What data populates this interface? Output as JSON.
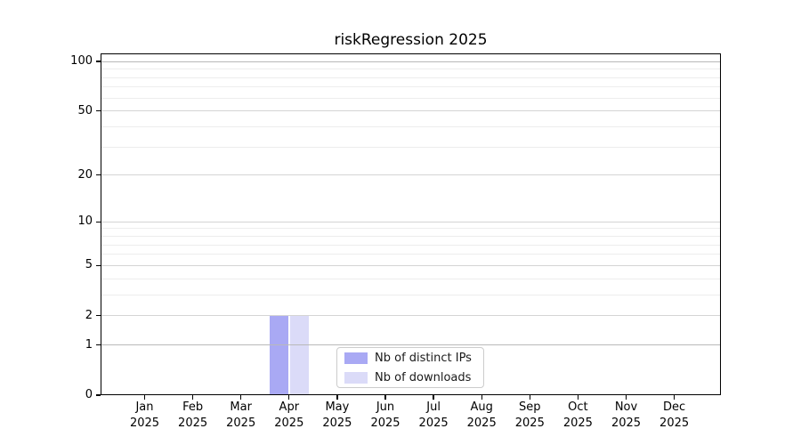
{
  "chart_data": {
    "type": "bar",
    "title": "riskRegression 2025",
    "x": {
      "months": [
        "Jan",
        "Feb",
        "Mar",
        "Apr",
        "May",
        "Jun",
        "Jul",
        "Aug",
        "Sep",
        "Oct",
        "Nov",
        "Dec"
      ],
      "year": "2025"
    },
    "categories": [
      "Jan 2025",
      "Feb 2025",
      "Mar 2025",
      "Apr 2025",
      "May 2025",
      "Jun 2025",
      "Jul 2025",
      "Aug 2025",
      "Sep 2025",
      "Oct 2025",
      "Nov 2025",
      "Dec 2025"
    ],
    "series": [
      {
        "name": "Nb of distinct IPs",
        "color": "#a9a9f4",
        "values": [
          0,
          0,
          0,
          2,
          0,
          0,
          0,
          0,
          0,
          0,
          0,
          0
        ]
      },
      {
        "name": "Nb of downloads",
        "color": "#dbdbf8",
        "values": [
          0,
          0,
          0,
          2,
          0,
          0,
          0,
          0,
          0,
          0,
          0,
          0
        ]
      }
    ],
    "y_axis": {
      "scale": "log1p",
      "major_ticks": [
        0,
        1,
        2,
        5,
        10,
        20,
        50,
        100
      ],
      "minor_ticks": [
        3,
        4,
        6,
        7,
        8,
        9,
        30,
        40,
        60,
        70,
        80,
        90
      ],
      "limit": [
        0,
        112
      ]
    },
    "grid": true,
    "legend_position": "lower center"
  },
  "legend": {
    "items": [
      {
        "label": "Nb of distinct IPs",
        "color": "#a9a9f4"
      },
      {
        "label": "Nb of downloads",
        "color": "#dbdbf8"
      }
    ]
  },
  "colors": {
    "axis": "#000000",
    "grid_major": "#d4d4d4",
    "grid_minor": "#ededed",
    "grid_emphasis": "#b9b9b9",
    "legend_border": "#cccccc",
    "background": "#ffffff"
  }
}
